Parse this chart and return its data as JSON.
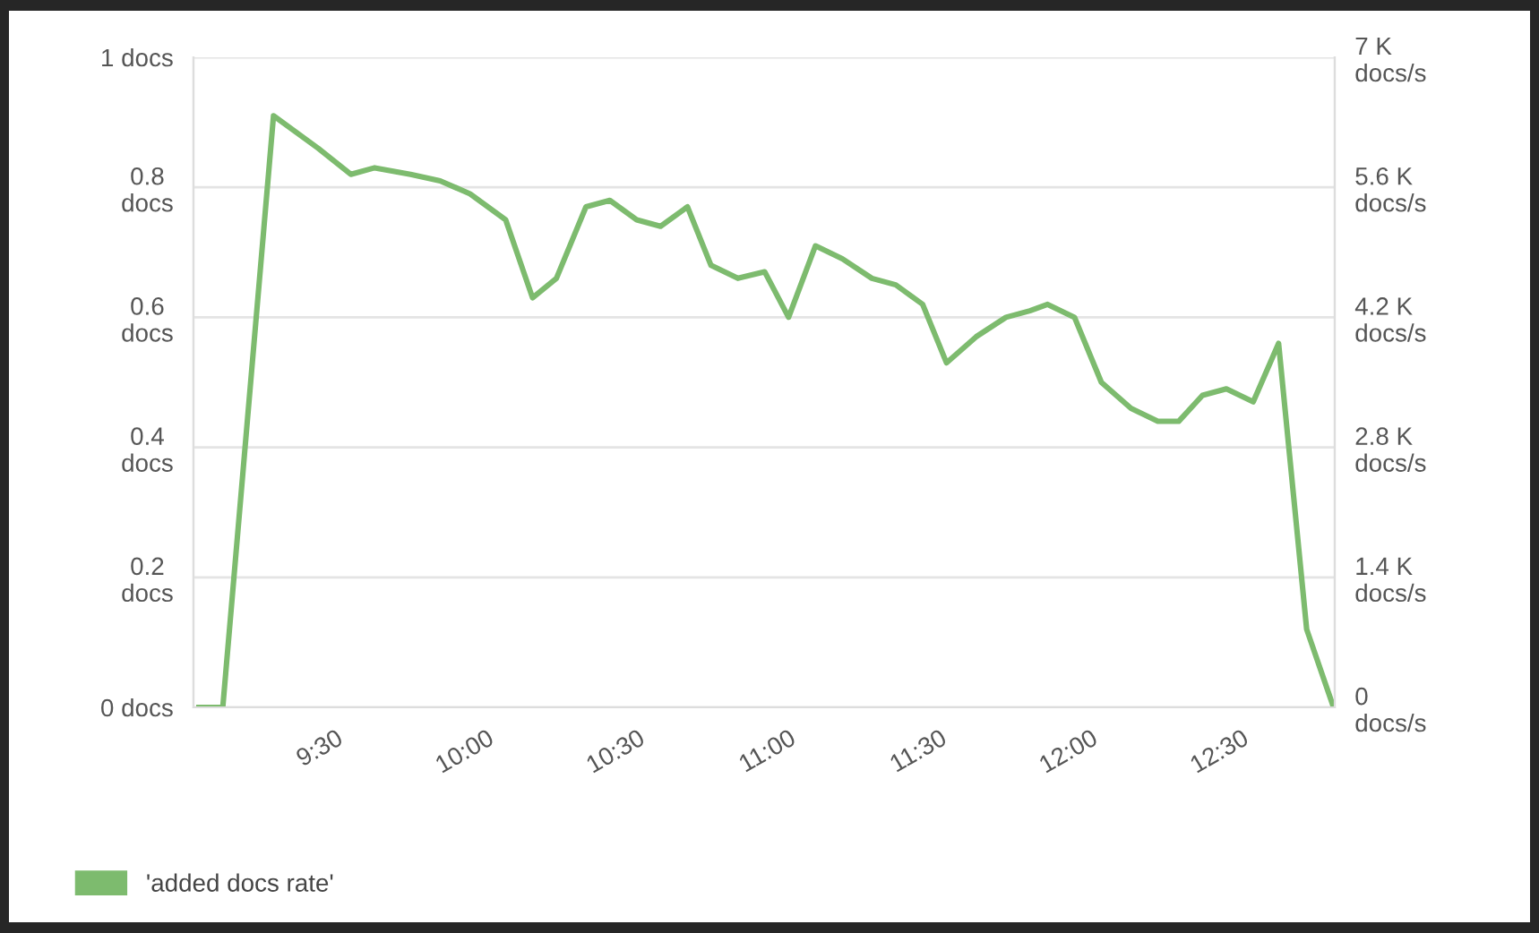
{
  "chart_data": {
    "type": "line",
    "x": [
      9.048,
      9.127,
      9.295,
      9.443,
      9.551,
      9.63,
      9.749,
      9.847,
      9.946,
      10.064,
      10.153,
      10.232,
      10.33,
      10.409,
      10.498,
      10.577,
      10.666,
      10.744,
      10.833,
      10.922,
      11.001,
      11.09,
      11.179,
      11.277,
      11.356,
      11.445,
      11.524,
      11.622,
      11.721,
      11.8,
      11.859,
      11.948,
      12.037,
      12.135,
      12.224,
      12.293,
      12.372,
      12.451,
      12.54,
      12.624,
      12.717,
      12.806
    ],
    "series": [
      {
        "name": "'added docs rate'",
        "color": "#7dbb6e",
        "values": [
          0,
          0,
          0.91,
          0.86,
          0.82,
          0.83,
          0.82,
          0.81,
          0.79,
          0.75,
          0.63,
          0.66,
          0.77,
          0.78,
          0.75,
          0.74,
          0.77,
          0.68,
          0.66,
          0.67,
          0.6,
          0.71,
          0.69,
          0.66,
          0.65,
          0.62,
          0.53,
          0.57,
          0.6,
          0.61,
          0.62,
          0.6,
          0.5,
          0.46,
          0.44,
          0.44,
          0.48,
          0.49,
          0.47,
          0.56,
          0.12,
          0
        ]
      }
    ],
    "xlim": [
      9.03,
      12.81
    ],
    "xticks": [
      {
        "value": 9.5,
        "label": "9:30"
      },
      {
        "value": 10,
        "label": "10:00"
      },
      {
        "value": 10.5,
        "label": "10:30"
      },
      {
        "value": 11,
        "label": "11:00"
      },
      {
        "value": 11.5,
        "label": "11:30"
      },
      {
        "value": 12,
        "label": "12:00"
      },
      {
        "value": 12.5,
        "label": "12:30"
      }
    ],
    "ylim": [
      0,
      1
    ],
    "yticks": [
      {
        "value": 0,
        "label": "0 docs"
      },
      {
        "value": 0.2,
        "label": "0.2\ndocs"
      },
      {
        "value": 0.4,
        "label": "0.4\ndocs"
      },
      {
        "value": 0.6,
        "label": "0.6\ndocs"
      },
      {
        "value": 0.8,
        "label": "0.8\ndocs"
      },
      {
        "value": 1,
        "label": "1 docs"
      }
    ],
    "y2lim": [
      0,
      7000
    ],
    "y2ticks": [
      {
        "value": 0,
        "label": "0\ndocs/s"
      },
      {
        "value": 1400,
        "label": "1.4 K\ndocs/s"
      },
      {
        "value": 2800,
        "label": "2.8 K\ndocs/s"
      },
      {
        "value": 4200,
        "label": "4.2 K\ndocs/s"
      },
      {
        "value": 5600,
        "label": "5.6 K\ndocs/s"
      },
      {
        "value": 7000,
        "label": "7 K\ndocs/s"
      }
    ],
    "grid": "y",
    "legend": "bottom left",
    "marker": "none",
    "line_style": "solid"
  }
}
